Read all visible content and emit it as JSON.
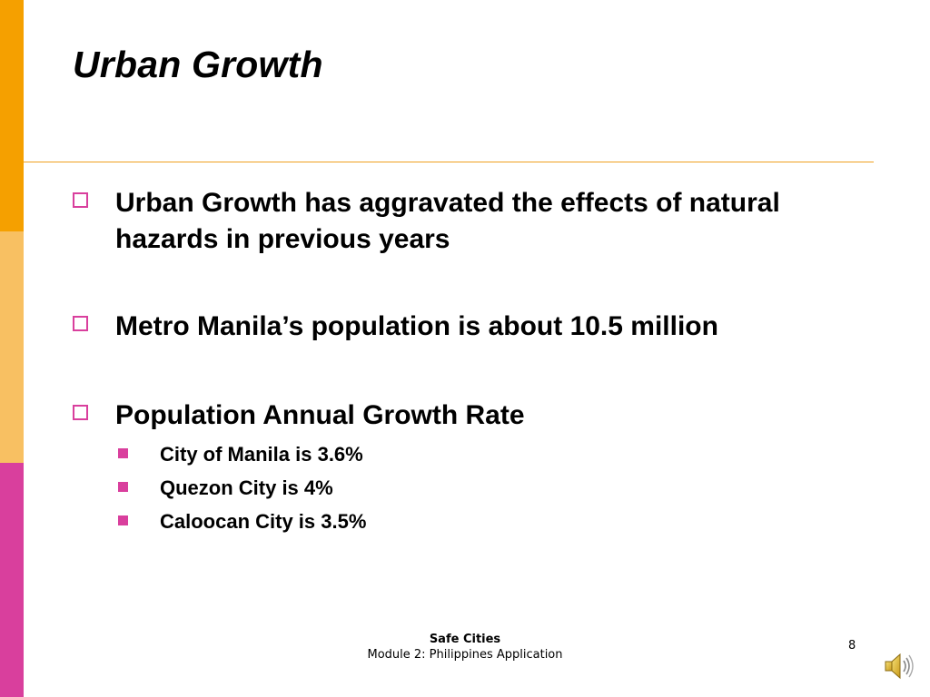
{
  "slide": {
    "title": "Urban Growth",
    "bullets": [
      {
        "text": "Urban Growth has aggravated the effects of natural hazards in previous years"
      },
      {
        "text": "Metro Manila’s population is about 10.5 million"
      },
      {
        "text": "Population Annual Growth Rate",
        "sub_items": [
          "City of Manila is 3.6%",
          "Quezon City is 4%",
          "Caloocan City is 3.5%"
        ]
      }
    ]
  },
  "footer": {
    "title": "Safe Cities",
    "subtitle": "Module 2: Philippines Application",
    "page_number": "8"
  },
  "icons": {
    "bullet": "hollow-square-icon",
    "sub_bullet": "filled-square-icon",
    "audio": "speaker-icon"
  },
  "colors": {
    "bar_top": "#f5a000",
    "bar_middle": "#f8c062",
    "bar_bottom": "#d93f9d",
    "accent": "#d93f9d",
    "rule": "#f0a020"
  }
}
